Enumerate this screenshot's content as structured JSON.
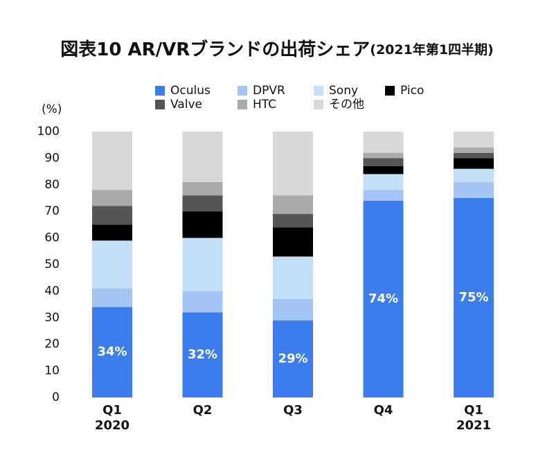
{
  "chart_data": {
    "type": "bar",
    "stacked": true,
    "title": "図表10 AR/VRブランドの出荷シェア",
    "subtitle": "(2021年第1四半期)",
    "y_label": "(%)",
    "categories": [
      "Q1\n2020",
      "Q2",
      "Q3",
      "Q4",
      "Q1\n2021"
    ],
    "series": [
      {
        "name": "Oculus",
        "color": "#3b7ded",
        "values": [
          34,
          32,
          29,
          74,
          75
        ],
        "value_labels": [
          "34%",
          "32%",
          "29%",
          "74%",
          "75%"
        ]
      },
      {
        "name": "DPVR",
        "color": "#a4c5f3",
        "values": [
          7,
          8,
          8,
          4,
          6
        ]
      },
      {
        "name": "Sony",
        "color": "#c3e0f8",
        "values": [
          18,
          20,
          16,
          6,
          5
        ]
      },
      {
        "name": "Pico",
        "color": "#000000",
        "values": [
          6,
          10,
          11,
          3,
          4
        ]
      },
      {
        "name": "Valve",
        "color": "#555555",
        "values": [
          7,
          6,
          5,
          3,
          2
        ]
      },
      {
        "name": "HTC",
        "color": "#aaaaaa",
        "values": [
          6,
          5,
          7,
          2,
          2
        ]
      },
      {
        "name": "その他",
        "color": "#d9d7d8",
        "values": [
          22,
          19,
          24,
          8,
          6
        ]
      }
    ],
    "ylim": [
      0,
      100
    ],
    "yticks": [
      0,
      10,
      20,
      30,
      40,
      50,
      60,
      70,
      80,
      90,
      100
    ],
    "grid": false
  }
}
